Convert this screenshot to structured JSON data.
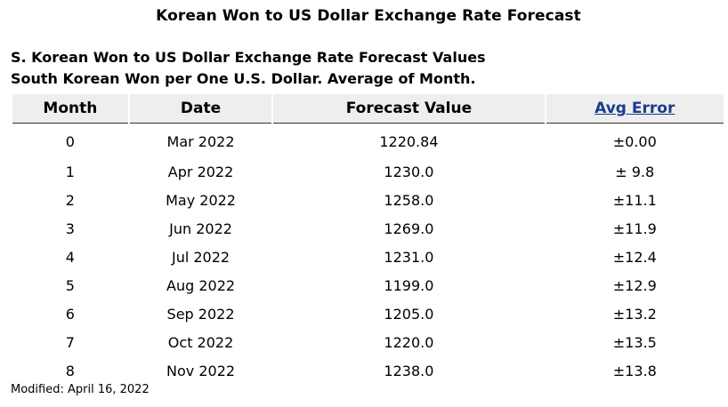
{
  "page": {
    "title": "Korean Won to US Dollar Exchange Rate Forecast",
    "subtitle_line1": "S. Korean Won to US Dollar Exchange Rate Forecast Values",
    "subtitle_line2": "South Korean Won per One U.S. Dollar.  Average of Month."
  },
  "table": {
    "headers": {
      "month": "Month",
      "date": "Date",
      "forecast": "Forecast Value",
      "avg_error": "Avg Error"
    },
    "rows": [
      {
        "month": "0",
        "date": "Mar 2022",
        "value": "1220.84",
        "error": "±0.00"
      },
      {
        "month": "1",
        "date": "Apr 2022",
        "value": "1230.0",
        "error": "± 9.8"
      },
      {
        "month": "2",
        "date": "May 2022",
        "value": "1258.0",
        "error": "±11.1"
      },
      {
        "month": "3",
        "date": "Jun 2022",
        "value": "1269.0",
        "error": "±11.9"
      },
      {
        "month": "4",
        "date": "Jul 2022",
        "value": "1231.0",
        "error": "±12.4"
      },
      {
        "month": "5",
        "date": "Aug 2022",
        "value": "1199.0",
        "error": "±12.9"
      },
      {
        "month": "6",
        "date": "Sep 2022",
        "value": "1205.0",
        "error": "±13.2"
      },
      {
        "month": "7",
        "date": "Oct 2022",
        "value": "1220.0",
        "error": "±13.5"
      },
      {
        "month": "8",
        "date": "Nov 2022",
        "value": "1238.0",
        "error": "±13.8"
      }
    ]
  },
  "footer": {
    "modified": "Modified: April 16, 2022"
  },
  "colors": {
    "header_bg": "#eeeeee",
    "link": "#1a3c8a"
  }
}
